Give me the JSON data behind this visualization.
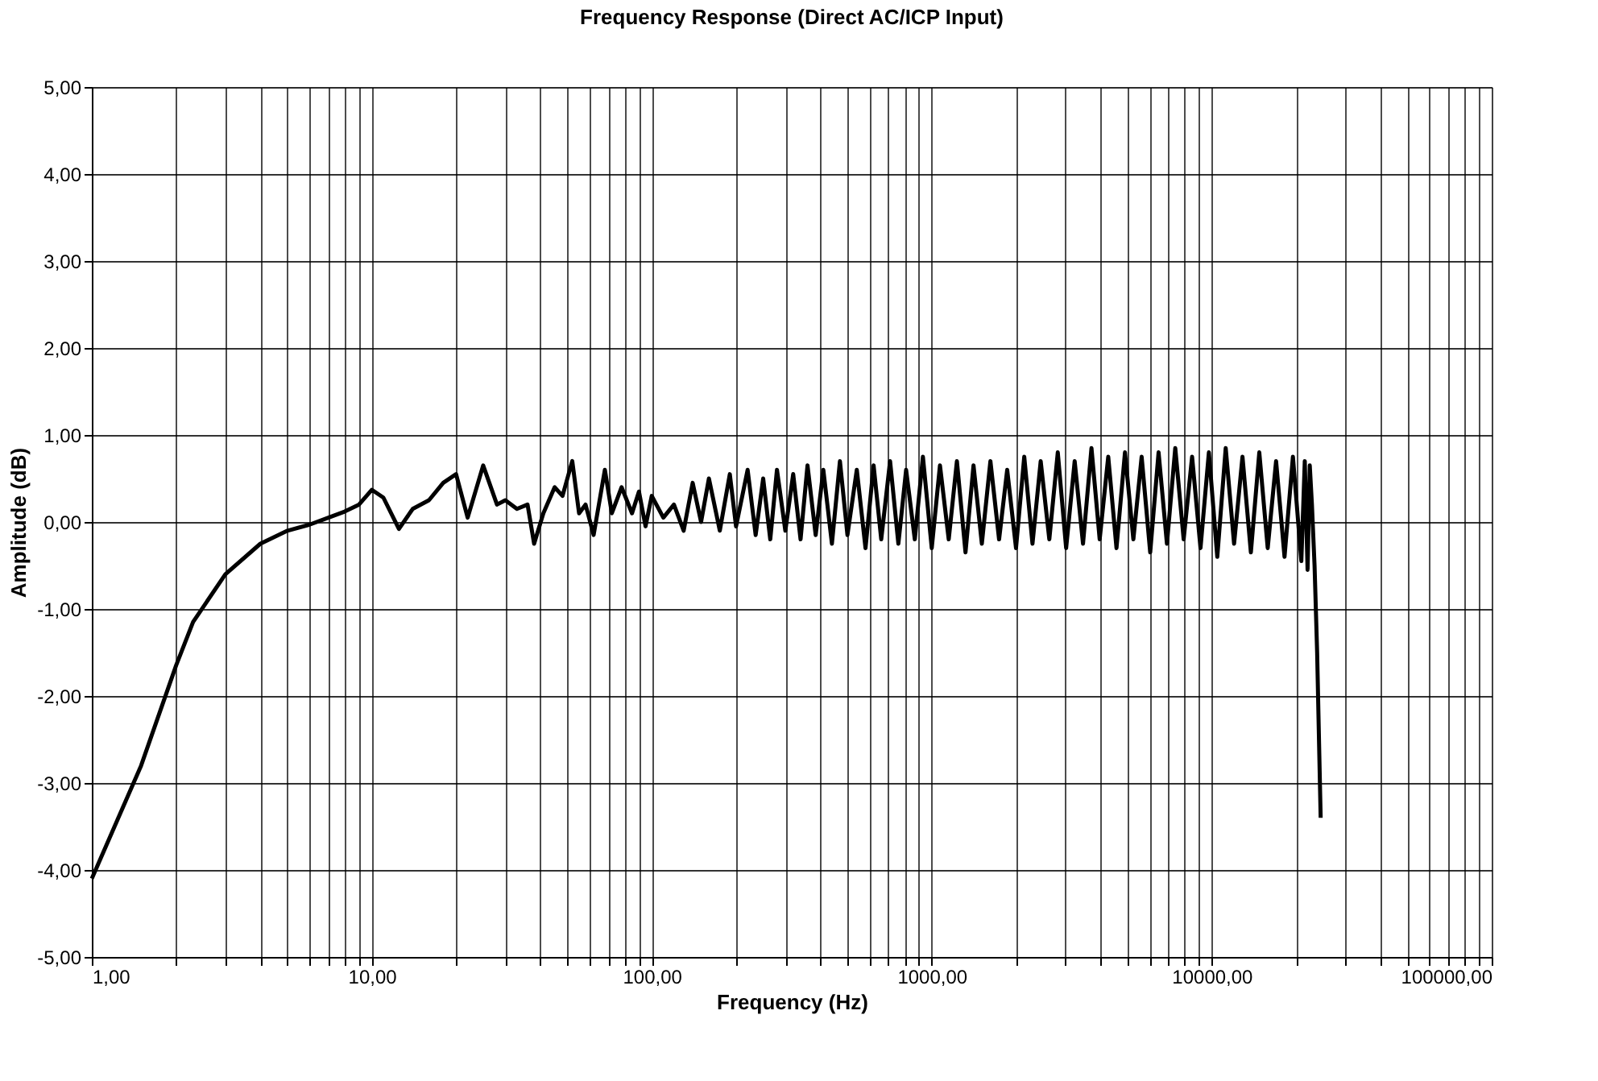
{
  "chart_data": {
    "type": "line",
    "title": "Frequency Response (Direct AC/ICP Input)",
    "xlabel": "Frequency (Hz)",
    "ylabel": "Amplitude (dB)",
    "x": [
      1,
      1.5,
      2,
      2.3,
      3,
      4,
      5,
      6,
      7,
      8,
      9,
      10,
      11,
      12.5,
      14,
      16,
      18,
      20,
      22,
      25,
      28,
      30,
      33,
      36,
      38,
      41,
      45,
      48,
      52,
      55,
      58,
      62,
      68,
      72,
      78,
      85,
      90,
      95,
      100,
      110,
      120,
      130,
      140,
      150,
      160,
      175,
      190,
      200,
      220,
      235,
      250,
      265,
      280,
      300,
      320,
      340,
      360,
      385,
      410,
      440,
      470,
      500,
      540,
      580,
      620,
      660,
      710,
      760,
      810,
      870,
      930,
      1000,
      1070,
      1150,
      1230,
      1320,
      1410,
      1510,
      1620,
      1740,
      1860,
      2000,
      2140,
      2290,
      2450,
      2630,
      2820,
      3020,
      3240,
      3470,
      3720,
      3980,
      4270,
      4570,
      4900,
      5250,
      5620,
      6030,
      6460,
      6920,
      7410,
      7940,
      8510,
      9120,
      9770,
      10470,
      11220,
      12020,
      12880,
      13800,
      14790,
      15850,
      16980,
      18200,
      19500,
      20900,
      21500,
      22000,
      22400,
      22800,
      23300,
      23800,
      24200,
      24500
    ],
    "series": [
      {
        "color": "#000000",
        "values": [
          -4.1,
          -2.8,
          -1.65,
          -1.15,
          -0.6,
          -0.25,
          -0.1,
          -0.03,
          0.05,
          0.12,
          0.2,
          0.37,
          0.28,
          -0.08,
          0.15,
          0.25,
          0.45,
          0.55,
          0.05,
          0.65,
          0.2,
          0.25,
          0.15,
          0.2,
          -0.25,
          0.1,
          0.4,
          0.3,
          0.7,
          0.1,
          0.2,
          -0.15,
          0.6,
          0.1,
          0.4,
          0.1,
          0.35,
          -0.05,
          0.3,
          0.05,
          0.2,
          -0.1,
          0.45,
          0.0,
          0.5,
          -0.1,
          0.55,
          -0.05,
          0.6,
          -0.15,
          0.5,
          -0.2,
          0.6,
          -0.1,
          0.55,
          -0.2,
          0.65,
          -0.15,
          0.6,
          -0.25,
          0.7,
          -0.15,
          0.6,
          -0.3,
          0.65,
          -0.2,
          0.7,
          -0.25,
          0.6,
          -0.2,
          0.75,
          -0.3,
          0.65,
          -0.2,
          0.7,
          -0.35,
          0.65,
          -0.25,
          0.7,
          -0.2,
          0.6,
          -0.3,
          0.75,
          -0.25,
          0.7,
          -0.2,
          0.8,
          -0.3,
          0.7,
          -0.25,
          0.85,
          -0.2,
          0.75,
          -0.3,
          0.8,
          -0.2,
          0.75,
          -0.35,
          0.8,
          -0.25,
          0.85,
          -0.2,
          0.75,
          -0.3,
          0.8,
          -0.4,
          0.85,
          -0.25,
          0.75,
          -0.35,
          0.8,
          -0.3,
          0.7,
          -0.4,
          0.75,
          -0.45,
          0.7,
          -0.55,
          0.65,
          0.2,
          -0.5,
          -1.5,
          -2.6,
          -3.4
        ]
      }
    ],
    "xlim": [
      1,
      100000
    ],
    "ylim": [
      -5,
      5
    ],
    "xticks": [
      {
        "value": 1,
        "label": "1,00"
      },
      {
        "value": 2,
        "label": null
      },
      {
        "value": 3,
        "label": null
      },
      {
        "value": 4,
        "label": null
      },
      {
        "value": 5,
        "label": null
      },
      {
        "value": 6,
        "label": null
      },
      {
        "value": 7,
        "label": null
      },
      {
        "value": 8,
        "label": null
      },
      {
        "value": 9,
        "label": null
      },
      {
        "value": 10,
        "label": "10,00"
      },
      {
        "value": 20,
        "label": null
      },
      {
        "value": 30,
        "label": null
      },
      {
        "value": 40,
        "label": null
      },
      {
        "value": 50,
        "label": null
      },
      {
        "value": 60,
        "label": null
      },
      {
        "value": 70,
        "label": null
      },
      {
        "value": 80,
        "label": null
      },
      {
        "value": 90,
        "label": null
      },
      {
        "value": 100,
        "label": "100,00"
      },
      {
        "value": 200,
        "label": null
      },
      {
        "value": 300,
        "label": null
      },
      {
        "value": 400,
        "label": null
      },
      {
        "value": 500,
        "label": null
      },
      {
        "value": 600,
        "label": null
      },
      {
        "value": 700,
        "label": null
      },
      {
        "value": 800,
        "label": null
      },
      {
        "value": 900,
        "label": null
      },
      {
        "value": 1000,
        "label": "1000,00"
      },
      {
        "value": 2000,
        "label": null
      },
      {
        "value": 3000,
        "label": null
      },
      {
        "value": 4000,
        "label": null
      },
      {
        "value": 5000,
        "label": null
      },
      {
        "value": 6000,
        "label": null
      },
      {
        "value": 7000,
        "label": null
      },
      {
        "value": 8000,
        "label": null
      },
      {
        "value": 9000,
        "label": null
      },
      {
        "value": 10000,
        "label": "10000,00"
      },
      {
        "value": 20000,
        "label": null
      },
      {
        "value": 30000,
        "label": null
      },
      {
        "value": 40000,
        "label": null
      },
      {
        "value": 50000,
        "label": null
      },
      {
        "value": 60000,
        "label": null
      },
      {
        "value": 70000,
        "label": null
      },
      {
        "value": 80000,
        "label": null
      },
      {
        "value": 90000,
        "label": null
      },
      {
        "value": 100000,
        "label": "100000,00"
      }
    ],
    "yticks": [
      {
        "value": -5,
        "label": "-5,00"
      },
      {
        "value": -4,
        "label": "-4,00"
      },
      {
        "value": -3,
        "label": "-3,00"
      },
      {
        "value": -2,
        "label": "-2,00"
      },
      {
        "value": -1,
        "label": "-1,00"
      },
      {
        "value": 0,
        "label": "0,00"
      },
      {
        "value": 1,
        "label": "1,00"
      },
      {
        "value": 2,
        "label": "2,00"
      },
      {
        "value": 3,
        "label": "3,00"
      },
      {
        "value": 4,
        "label": "4,00"
      },
      {
        "value": 5,
        "label": "5,00"
      }
    ],
    "grid": true,
    "log": "x",
    "marker": "none",
    "line_style": "solid"
  }
}
